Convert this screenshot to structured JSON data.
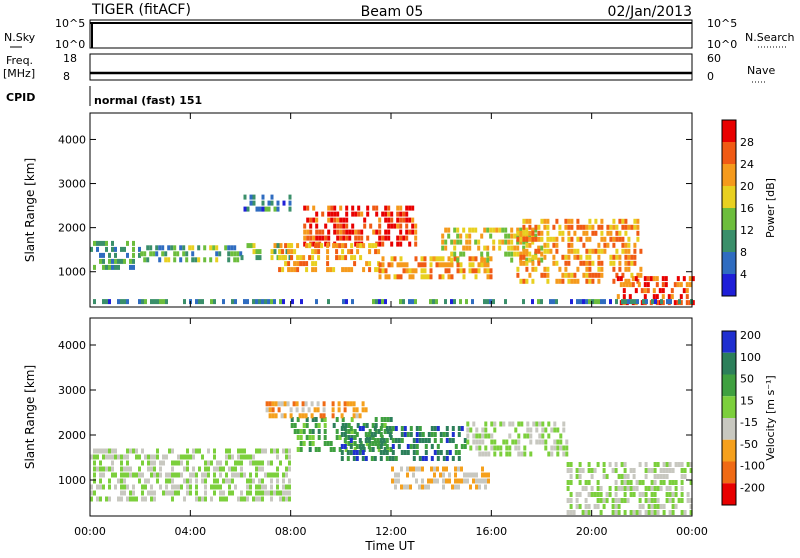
{
  "header": {
    "radar": "TIGER (fitACF)",
    "beam": "Beam 05",
    "date": "02/Jan/2013"
  },
  "strips": {
    "nsky": {
      "label": "N.Sky",
      "ticks": [
        "10^5",
        "10^0"
      ]
    },
    "nsearch": {
      "label": "N.Search",
      "ticks": [
        "10^5",
        "10^0"
      ]
    },
    "freq": {
      "label_top": "Freq.",
      "label_unit": "[MHz]",
      "ticks": [
        "18",
        "8"
      ]
    },
    "nave": {
      "label": "Nave",
      "ticks": [
        "60",
        "0"
      ]
    },
    "cpid": {
      "label": "CPID",
      "value": "normal (fast) 151"
    }
  },
  "chart_data": [
    {
      "type": "heatmap",
      "name": "power",
      "xlabel": "Time UT",
      "ylabel": "Slant Range [km]",
      "xticks": [
        "00:00",
        "04:00",
        "08:00",
        "12:00",
        "16:00",
        "20:00",
        "00:00"
      ],
      "xlim": [
        0,
        24
      ],
      "yticks": [
        "1000",
        "2000",
        "3000",
        "4000"
      ],
      "ylim": [
        200,
        4600
      ],
      "colorbar_label": "Power [dB]",
      "colorbar_ticks": [
        "4",
        "8",
        "12",
        "16",
        "20",
        "24",
        "28"
      ],
      "colorbar_colors": [
        "#1f1fd8",
        "#2f6cc0",
        "#3a8f6a",
        "#6cbd3c",
        "#e8d020",
        "#f59a1c",
        "#f05a14",
        "#e80000"
      ],
      "colorbar_range": [
        0,
        32
      ],
      "bands": [
        {
          "x": [
            0,
            2
          ],
          "y": [
            1150,
            1700
          ],
          "value": 10
        },
        {
          "x": [
            2,
            6
          ],
          "y": [
            1200,
            1600
          ],
          "value": 12
        },
        {
          "x": [
            6,
            8
          ],
          "y": [
            1250,
            1650
          ],
          "value": 16
        },
        {
          "x": [
            8.5,
            13
          ],
          "y": [
            1600,
            2500
          ],
          "value": 28
        },
        {
          "x": [
            7.5,
            11.5
          ],
          "y": [
            1050,
            1650
          ],
          "value": 22
        },
        {
          "x": [
            11.5,
            16
          ],
          "y": [
            850,
            1350
          ],
          "value": 22
        },
        {
          "x": [
            14,
            18
          ],
          "y": [
            1200,
            2000
          ],
          "value": 18
        },
        {
          "x": [
            17,
            22
          ],
          "y": [
            800,
            2200
          ],
          "value": 22
        },
        {
          "x": [
            21,
            24
          ],
          "y": [
            300,
            900
          ],
          "value": 26
        },
        {
          "x": [
            6,
            8
          ],
          "y": [
            2400,
            2750
          ],
          "value": 8
        },
        {
          "x": [
            0,
            24
          ],
          "y": [
            250,
            380
          ],
          "value": 8
        }
      ]
    },
    {
      "type": "heatmap",
      "name": "velocity",
      "xlabel": "Time UT",
      "ylabel": "Slant Range [km]",
      "xticks": [
        "00:00",
        "04:00",
        "08:00",
        "12:00",
        "16:00",
        "20:00",
        "00:00"
      ],
      "xlim": [
        0,
        24
      ],
      "yticks": [
        "1000",
        "2000",
        "3000",
        "4000"
      ],
      "ylim": [
        200,
        4600
      ],
      "colorbar_label": "Velocity [m s⁻¹]",
      "colorbar_ticks": [
        "200",
        "100",
        "50",
        "15",
        "-15",
        "-50",
        "-100",
        "-200"
      ],
      "colorbar_colors": [
        "#1f2fd0",
        "#2c7f5a",
        "#3fa040",
        "#7ccf3c",
        "#c8c8c0",
        "#f5a01c",
        "#f06a14",
        "#e80000"
      ],
      "colorbar_range": [
        -250,
        250
      ],
      "bands": [
        {
          "x": [
            0,
            8
          ],
          "y": [
            600,
            1700
          ],
          "value": 0
        },
        {
          "x": [
            8,
            12
          ],
          "y": [
            1700,
            2400
          ],
          "value": 100
        },
        {
          "x": [
            10,
            15
          ],
          "y": [
            1500,
            2200
          ],
          "value": 150
        },
        {
          "x": [
            12,
            16
          ],
          "y": [
            800,
            1300
          ],
          "value": -60
        },
        {
          "x": [
            15,
            19
          ],
          "y": [
            1500,
            2300
          ],
          "value": 0
        },
        {
          "x": [
            19,
            24
          ],
          "y": [
            300,
            1400
          ],
          "value": 0
        },
        {
          "x": [
            7,
            11
          ],
          "y": [
            2450,
            2750
          ],
          "value": -100
        }
      ]
    }
  ]
}
